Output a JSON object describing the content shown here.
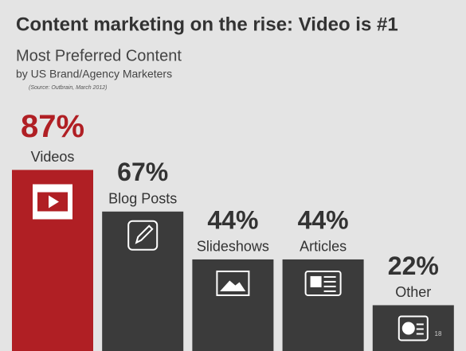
{
  "chart_data": {
    "type": "bar",
    "title": "Content marketing on the rise: Video is #1",
    "subtitle": "Most Preferred Content",
    "subtitle_2": "by US Brand/Agency Marketers",
    "source": "(Source: Outbrain, March 2012)",
    "categories": [
      "Videos",
      "Blog Posts",
      "Slideshows",
      "Articles",
      "Other"
    ],
    "values": [
      87,
      67,
      44,
      44,
      22
    ],
    "value_labels": [
      "87%",
      "67%",
      "44%",
      "44%",
      "22%"
    ],
    "colors": [
      "#b01f24",
      "#3b3b3b",
      "#3b3b3b",
      "#3b3b3b",
      "#3b3b3b"
    ],
    "page_number": "18"
  }
}
